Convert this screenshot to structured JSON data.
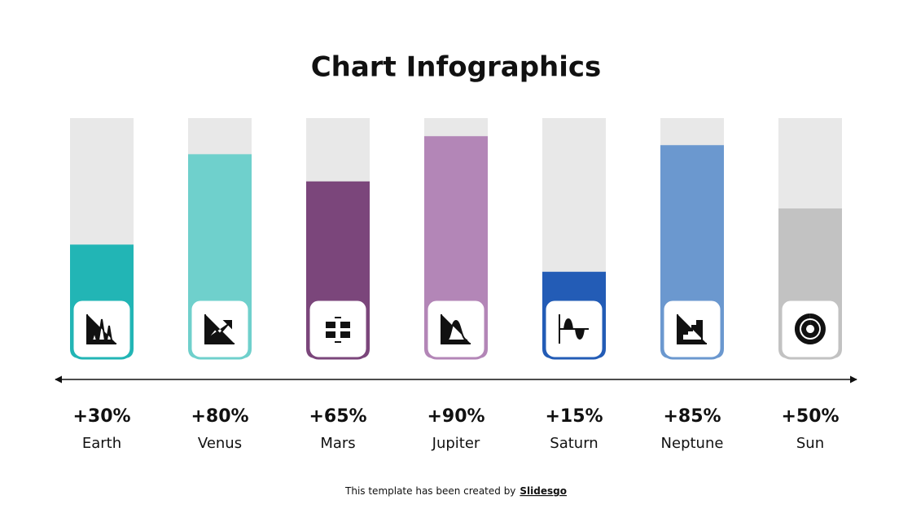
{
  "chart_data": {
    "type": "bar",
    "title": "Chart Infographics",
    "categories": [
      "Earth",
      "Venus",
      "Mars",
      "Jupiter",
      "Saturn",
      "Neptune",
      "Sun"
    ],
    "values": [
      30,
      80,
      65,
      90,
      15,
      85,
      50
    ],
    "value_labels": [
      "+30%",
      "+80%",
      "+65%",
      "+90%",
      "+15%",
      "+85%",
      "+50%"
    ],
    "colors": [
      "#22b5b5",
      "#6fd0cc",
      "#7b467b",
      "#b386b7",
      "#235cb6",
      "#6b98cf",
      "#c2c2c2"
    ],
    "ylim": [
      0,
      100
    ]
  },
  "footer": {
    "text": "This template has been created by",
    "link": "Slidesgo"
  }
}
